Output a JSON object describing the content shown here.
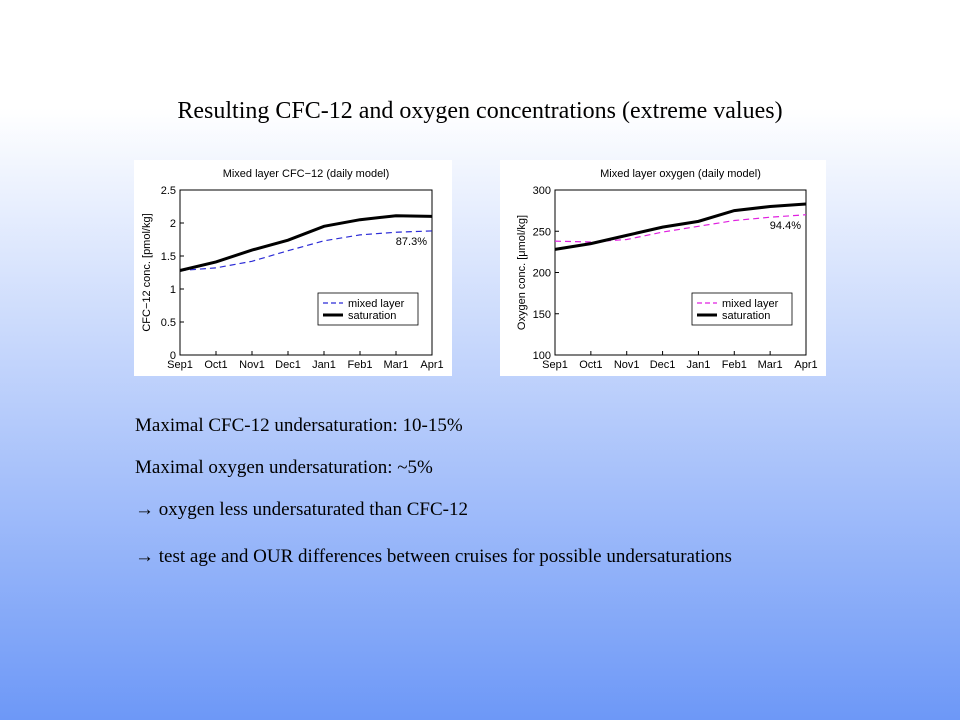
{
  "title": "Resulting CFC-12 and oxygen concentrations (extreme values)",
  "chart_data": [
    {
      "type": "line",
      "title": "Mixed layer CFC−12 (daily model)",
      "y_label": "CFC−12 conc. [pmol/kg]",
      "categories": [
        "Sep1",
        "Oct1",
        "Nov1",
        "Dec1",
        "Jan1",
        "Feb1",
        "Mar1",
        "Apr1"
      ],
      "series": [
        {
          "name": "mixed layer",
          "color": "#2b2bd6",
          "linestyle": "dashed",
          "values": [
            1.28,
            1.32,
            1.42,
            1.58,
            1.73,
            1.82,
            1.86,
            1.88
          ]
        },
        {
          "name": "saturation",
          "color": "#000000",
          "linestyle": "solid",
          "values": [
            1.28,
            1.41,
            1.59,
            1.74,
            1.95,
            2.05,
            2.11,
            2.1
          ]
        }
      ],
      "annotation": "87.3%",
      "annotation_color": "#2b2bd6",
      "ylim": [
        0,
        2.5
      ],
      "yticks": [
        0,
        0.5,
        1,
        1.5,
        2,
        2.5
      ],
      "grid": false,
      "legend": "lower right"
    },
    {
      "type": "line",
      "title": "Mixed layer oxygen (daily model)",
      "y_label": "Oxygen conc. [μmol/kg]",
      "categories": [
        "Sep1",
        "Oct1",
        "Nov1",
        "Dec1",
        "Jan1",
        "Feb1",
        "Mar1",
        "Apr1"
      ],
      "series": [
        {
          "name": "mixed layer",
          "color": "#e020e0",
          "linestyle": "dashed",
          "values": [
            238,
            237,
            240,
            249,
            256,
            263,
            267,
            270
          ]
        },
        {
          "name": "saturation",
          "color": "#000000",
          "linestyle": "solid",
          "values": [
            228,
            235,
            245,
            255,
            262,
            275,
            280,
            283
          ]
        }
      ],
      "annotation": "94.4%",
      "annotation_color": "#e020e0",
      "ylim": [
        100,
        300
      ],
      "yticks": [
        100,
        150,
        200,
        250,
        300
      ],
      "grid": false,
      "legend": "lower right"
    }
  ],
  "bullets": [
    "Maximal CFC-12 undersaturation: 10-15%",
    "Maximal oxygen undersaturation: ~5%",
    "→ oxygen less undersaturated than CFC-12",
    "→ test age and OUR differences between cruises for possible undersaturations"
  ]
}
